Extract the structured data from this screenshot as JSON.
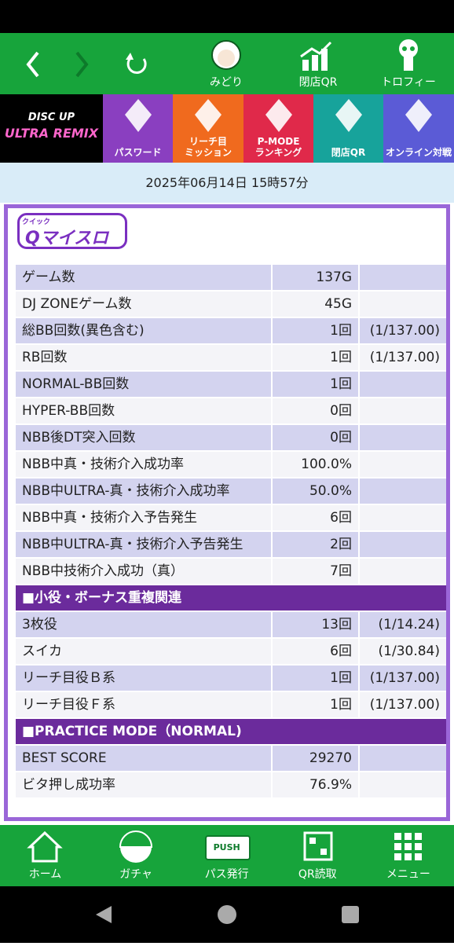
{
  "nav": {
    "items": [
      "みどり",
      "閉店QR",
      "トロフィー"
    ]
  },
  "menu": {
    "logo": [
      "DISC UP",
      "ULTRA REMIX"
    ],
    "items": [
      [
        "パスワード"
      ],
      [
        "リーチ目",
        "ミッション"
      ],
      [
        "P-MODE",
        "ランキング"
      ],
      [
        "閉店QR"
      ],
      [
        "オンライン対戦"
      ]
    ]
  },
  "date": "2025年06月14日 15時57分",
  "panel": {
    "logo_small": "クイック",
    "logo": "Qマイスロ",
    "sections": [
      {
        "rows": [
          [
            "ゲーム数",
            "137G"
          ],
          [
            "DJ ZONEゲーム数",
            "45G"
          ],
          [
            "総BB回数(異色含む)",
            "1回",
            "(1/137.00)"
          ],
          [
            "RB回数",
            "1回",
            "(1/137.00)"
          ],
          [
            "NORMAL-BB回数",
            "1回"
          ],
          [
            "HYPER-BB回数",
            "0回"
          ],
          [
            "NBB後DT突入回数",
            "0回"
          ],
          [
            "NBB中真・技術介入成功率",
            "100.0%"
          ],
          [
            "NBB中ULTRA-真・技術介入成功率",
            "50.0%"
          ],
          [
            "NBB中真・技術介入予告発生",
            "6回"
          ],
          [
            "NBB中ULTRA-真・技術介入予告発生",
            "2回"
          ],
          [
            "NBB中技術介入成功（真）",
            "7回"
          ]
        ]
      },
      {
        "title": "■小役・ボーナス重複関連",
        "rows": [
          [
            "3枚役",
            "13回",
            "(1/14.24)"
          ],
          [
            "スイカ",
            "6回",
            "(1/30.84)"
          ],
          [
            "リーチ目役Ｂ系",
            "1回",
            "(1/137.00)"
          ],
          [
            "リーチ目役Ｆ系",
            "1回",
            "(1/137.00)"
          ]
        ]
      },
      {
        "title": "■PRACTICE MODE（NORMAL)",
        "rows": [
          [
            "BEST SCORE",
            "29270"
          ],
          [
            "ビタ押し成功率",
            "76.9%"
          ]
        ]
      }
    ]
  },
  "bottom": {
    "items": [
      "ホーム",
      "ガチャ",
      "パス発行",
      "QR読取",
      "メニュー"
    ],
    "push": "PUSH"
  }
}
